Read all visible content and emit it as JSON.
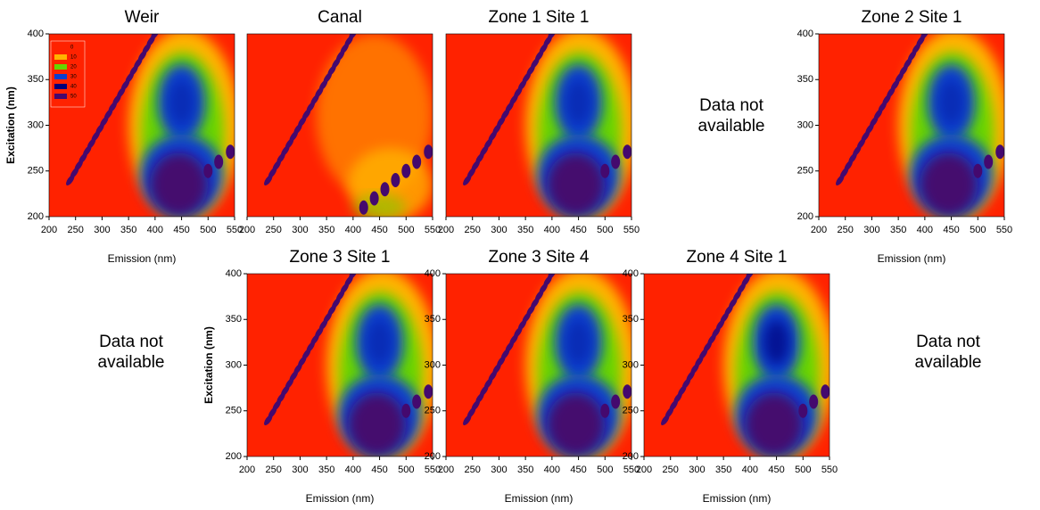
{
  "chart_data": [
    {
      "type": "contour",
      "title": "Weir",
      "xlabel": "Emission (nm)",
      "ylabel": "Excitation (nm)",
      "xlim": [
        200,
        550
      ],
      "ylim": [
        200,
        400
      ],
      "xticks": [
        200,
        250,
        300,
        350,
        400,
        450,
        500,
        550
      ],
      "yticks": [
        200,
        250,
        300,
        350,
        400
      ],
      "levels": [
        0,
        10,
        20,
        30,
        40,
        50
      ],
      "colors": [
        "#ff2200",
        "#ffb400",
        "#66d600",
        "#0a3fd0",
        "#00007a",
        "#44096e"
      ],
      "legend": true
    },
    {
      "type": "contour",
      "title": "Canal",
      "xlim": [
        200,
        550
      ],
      "ylim": [
        200,
        400
      ],
      "xticks": [
        200,
        250,
        300,
        350,
        400,
        450,
        500,
        550
      ],
      "levels": [
        0,
        10,
        20,
        30,
        40,
        50
      ],
      "colors": [
        "#ff2200",
        "#ffb400",
        "#66d600",
        "#0a3fd0",
        "#00007a",
        "#44096e"
      ]
    },
    {
      "type": "contour",
      "title": "Zone 1 Site 1",
      "xlim": [
        200,
        550
      ],
      "ylim": [
        200,
        400
      ],
      "xticks": [
        200,
        250,
        300,
        350,
        400,
        450,
        500,
        550
      ],
      "levels": [
        0,
        10,
        20,
        30,
        40,
        50
      ],
      "colors": [
        "#ff2200",
        "#ffb400",
        "#66d600",
        "#0a3fd0",
        "#00007a",
        "#44096e"
      ]
    },
    {
      "type": "contour",
      "title": "Zone 2 Site 1",
      "xlabel": "Emission (nm)",
      "xlim": [
        200,
        550
      ],
      "ylim": [
        200,
        400
      ],
      "xticks": [
        200,
        250,
        300,
        350,
        400,
        450,
        500,
        550
      ],
      "yticks": [
        200,
        250,
        300,
        350,
        400
      ],
      "levels": [
        0,
        10,
        20,
        30,
        40,
        50
      ],
      "colors": [
        "#ff2200",
        "#ffb400",
        "#66d600",
        "#0a3fd0",
        "#00007a",
        "#44096e"
      ]
    },
    {
      "type": "contour",
      "title": "Zone 3 Site 1",
      "xlabel": "Emission (nm)",
      "ylabel": "Excitation (nm)",
      "xlim": [
        200,
        550
      ],
      "ylim": [
        200,
        400
      ],
      "xticks": [
        200,
        250,
        300,
        350,
        400,
        450,
        500,
        550
      ],
      "yticks": [
        200,
        250,
        300,
        350,
        400
      ],
      "levels": [
        0,
        10,
        20,
        30,
        40,
        50
      ],
      "colors": [
        "#ff2200",
        "#ffb400",
        "#66d600",
        "#0a3fd0",
        "#00007a",
        "#44096e"
      ]
    },
    {
      "type": "contour",
      "title": "Zone 3 Site 4",
      "xlabel": "Emission (nm)",
      "xlim": [
        200,
        550
      ],
      "ylim": [
        200,
        400
      ],
      "xticks": [
        200,
        250,
        300,
        350,
        400,
        450,
        500,
        550
      ],
      "yticks": [
        200,
        250,
        300,
        350,
        400
      ],
      "levels": [
        0,
        10,
        20,
        30,
        40,
        50
      ],
      "colors": [
        "#ff2200",
        "#ffb400",
        "#66d600",
        "#0a3fd0",
        "#00007a",
        "#44096e"
      ]
    },
    {
      "type": "contour",
      "title": "Zone 4 Site 1",
      "xlabel": "Emission (nm)",
      "xlim": [
        200,
        550
      ],
      "ylim": [
        200,
        400
      ],
      "xticks": [
        200,
        250,
        300,
        350,
        400,
        450,
        500,
        550
      ],
      "yticks": [
        200,
        250,
        300,
        350,
        400
      ],
      "levels": [
        0,
        10,
        20,
        30,
        40,
        50
      ],
      "colors": [
        "#ff2200",
        "#ffb400",
        "#66d600",
        "#0a3fd0",
        "#00007a",
        "#44096e"
      ]
    }
  ],
  "notes": [
    "Data not available",
    "Data not available",
    "Data not available"
  ]
}
